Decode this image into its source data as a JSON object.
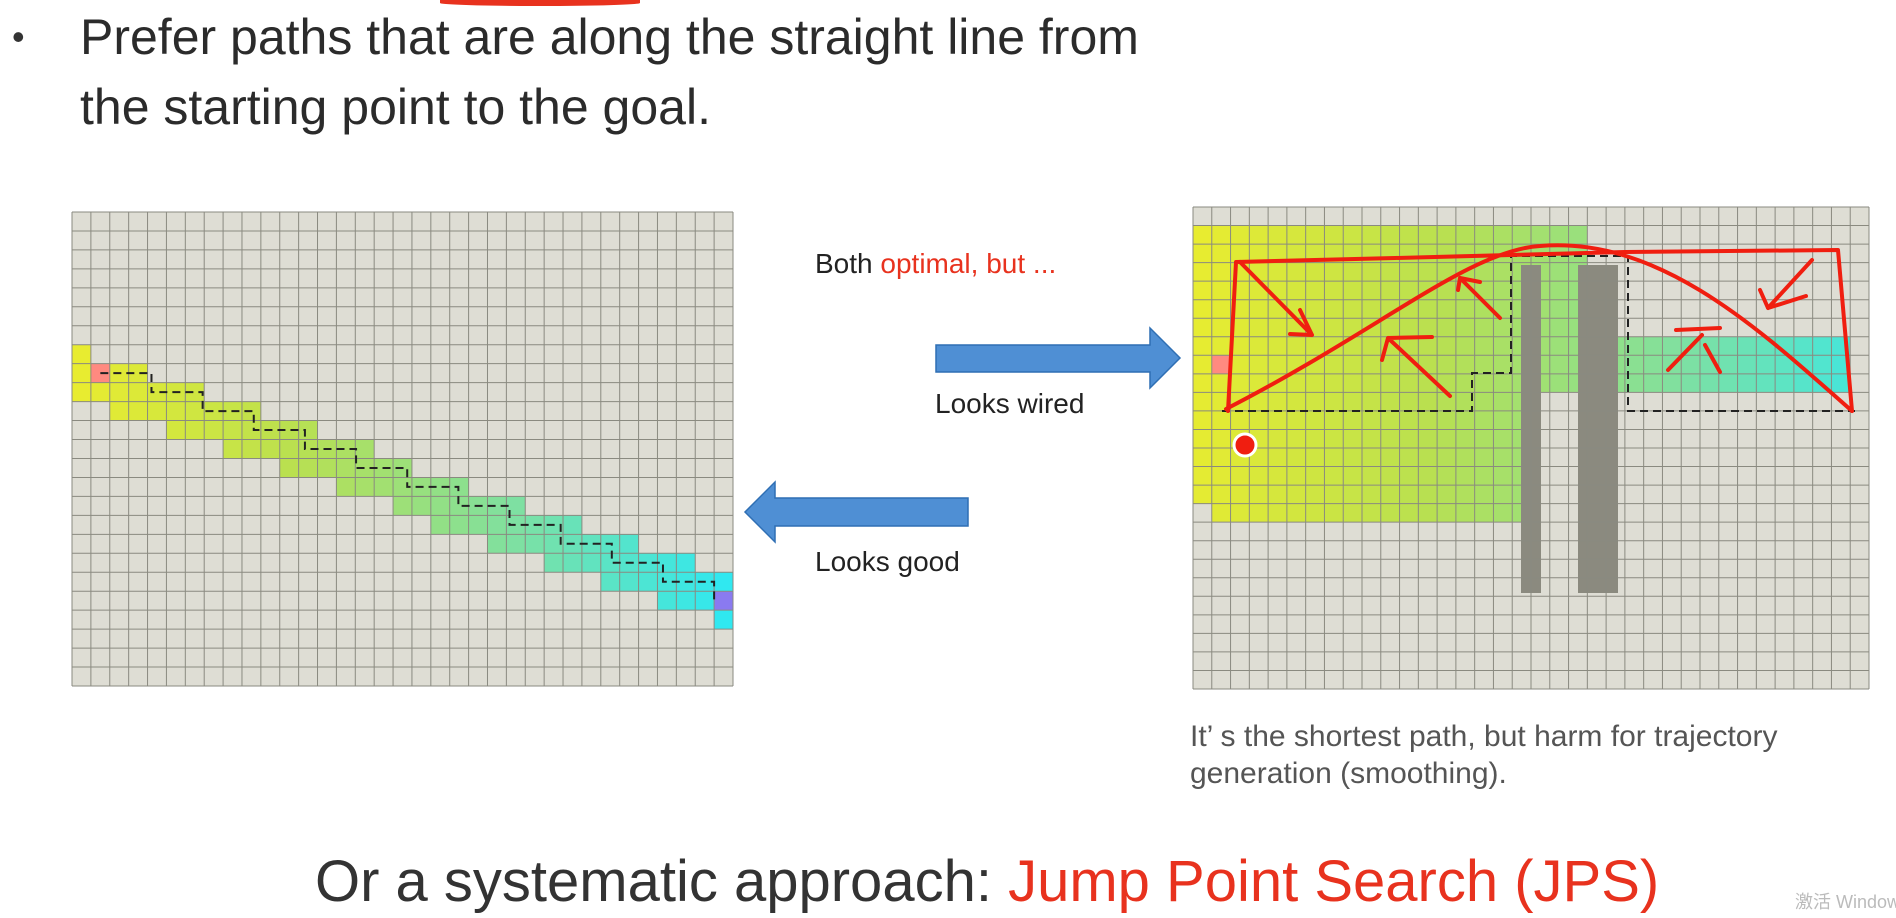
{
  "slide": {
    "bullet_symbol": "•",
    "bullet_line1": "Prefer paths that are along the straight line from",
    "bullet_line2": "the starting point to the goal.",
    "caption_both_prefix": "Both ",
    "caption_both_red": "optimal, but ...",
    "caption_looks_wired": "Looks wired",
    "caption_looks_good": "Looks good",
    "note": "It’ s the shortest path, but harm for trajectory generation (smoothing).",
    "bottom_prefix": "Or a systematic approach: ",
    "bottom_red": "Jump Point Search (JPS)",
    "watermark": "激活 Windows"
  },
  "colors": {
    "grid_bg": "#deddd4",
    "grid_line": "#8a8a80",
    "arrow_fill": "#4f8fd4",
    "arrow_stroke": "#2f6fb4",
    "red_annotation": "#f01e10",
    "obstacle": "#8b8a7f",
    "start_cell": "#ff8a80",
    "goal_cell": "#8a7af0"
  }
}
